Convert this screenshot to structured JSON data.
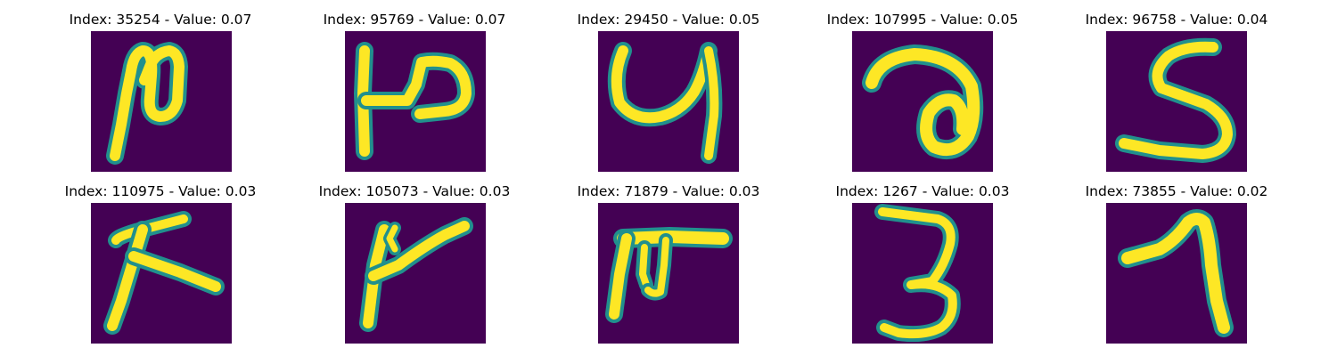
{
  "colors": {
    "background": "#440154",
    "stroke_core": "#fde725",
    "stroke_edge": "#21908d",
    "stroke_mid": "#5ec962"
  },
  "panels": [
    {
      "title": "Index: 35254 - Value: 0.07",
      "glyph": "glyph-35254"
    },
    {
      "title": "Index: 95769 - Value: 0.07",
      "glyph": "glyph-95769"
    },
    {
      "title": "Index: 29450 - Value: 0.05",
      "glyph": "glyph-29450"
    },
    {
      "title": "Index: 107995 - Value: 0.05",
      "glyph": "glyph-107995"
    },
    {
      "title": "Index: 96758 - Value: 0.04",
      "glyph": "glyph-96758"
    },
    {
      "title": "Index: 110975 - Value: 0.03",
      "glyph": "glyph-110975"
    },
    {
      "title": "Index: 105073 - Value: 0.03",
      "glyph": "glyph-105073"
    },
    {
      "title": "Index: 71879 - Value: 0.03",
      "glyph": "glyph-71879"
    },
    {
      "title": "Index: 1267 - Value: 0.03",
      "glyph": "glyph-1267"
    },
    {
      "title": "Index: 73855 - Value: 0.02",
      "glyph": "glyph-73855"
    }
  ]
}
